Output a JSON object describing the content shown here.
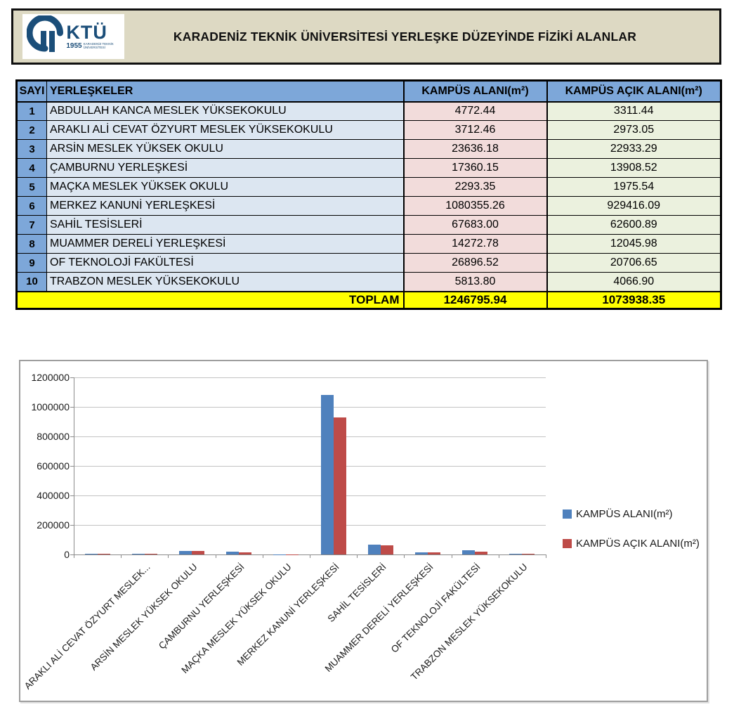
{
  "header": {
    "title": "KARADENİZ TEKNİK ÜNİVERSİTESİ YERLEŞKE DÜZEYİNDE FİZİKİ ALANLAR",
    "logo": {
      "acronym": "KTÜ",
      "year": "1955",
      "subtext": "KARADENİZ TEKNİK ÜNİVERSİTESİ",
      "color": "#1b4e79"
    }
  },
  "table": {
    "columns": [
      "SAYI",
      "YERLEŞKELER",
      "KAMPÜS ALANI(m²)",
      "KAMPÜS AÇIK ALANI(m²)"
    ],
    "rows": [
      {
        "no": "1",
        "name": "ABDULLAH KANCA MESLEK YÜKSEKOKULU",
        "kampus": "4772.44",
        "acik": "3311.44"
      },
      {
        "no": "2",
        "name": "ARAKLI ALİ CEVAT ÖZYURT MESLEK YÜKSEKOKULU",
        "kampus": "3712.46",
        "acik": "2973.05"
      },
      {
        "no": "3",
        "name": "ARSİN MESLEK YÜKSEK OKULU",
        "kampus": "23636.18",
        "acik": "22933.29"
      },
      {
        "no": "4",
        "name": "ÇAMBURNU YERLEŞKESİ",
        "kampus": "17360.15",
        "acik": "13908.52"
      },
      {
        "no": "5",
        "name": "MAÇKA MESLEK YÜKSEK OKULU",
        "kampus": "2293.35",
        "acik": "1975.54"
      },
      {
        "no": "6",
        "name": "MERKEZ KANUNİ YERLEŞKESİ",
        "kampus": "1080355.26",
        "acik": "929416.09"
      },
      {
        "no": "7",
        "name": "SAHİL TESİSLERİ",
        "kampus": "67683.00",
        "acik": "62600.89"
      },
      {
        "no": "8",
        "name": "MUAMMER DERELİ YERLEŞKESİ",
        "kampus": "14272.78",
        "acik": "12045.98"
      },
      {
        "no": "9",
        "name": "OF TEKNOLOJİ FAKÜLTESİ",
        "kampus": "26896.52",
        "acik": "20706.65"
      },
      {
        "no": "10",
        "name": "TRABZON MESLEK YÜKSEKOKULU",
        "kampus": "5813.80",
        "acik": "4066.90"
      }
    ],
    "total": {
      "label": "TOPLAM",
      "kampus": "1246795.94",
      "acik": "1073938.35"
    }
  },
  "chart_data": {
    "type": "bar",
    "title": "",
    "categories": [
      "ABDULLAH KANCA MESLEK YÜKSEKOKULU",
      "ARAKLI ALİ CEVAT ÖZYURT MESLEK YÜKSEKOKULU",
      "ARSİN MESLEK YÜKSEK OKULU",
      "ÇAMBURNU YERLEŞKESİ",
      "MAÇKA MESLEK YÜKSEK OKULU",
      "MERKEZ KANUNİ YERLEŞKESİ",
      "SAHİL TESİSLERİ",
      "MUAMMER DERELİ YERLEŞKESİ",
      "OF TEKNOLOJİ FAKÜLTESİ",
      "TRABZON MESLEK YÜKSEKOKULU"
    ],
    "series": [
      {
        "name": "KAMPÜS ALANI(m²)",
        "color": "#4f81bd",
        "values": [
          4772.44,
          3712.46,
          23636.18,
          17360.15,
          2293.35,
          1080355.26,
          67683.0,
          14272.78,
          26896.52,
          5813.8
        ]
      },
      {
        "name": "KAMPÜS AÇIK ALANI(m²)",
        "color": "#be4b48",
        "values": [
          3311.44,
          2973.05,
          22933.29,
          13908.52,
          1975.54,
          929416.09,
          62600.89,
          12045.98,
          20706.65,
          4066.9
        ]
      }
    ],
    "ylim": [
      0,
      1200000
    ],
    "ytick_step": 200000,
    "ytick_labels": [
      "0",
      "200000",
      "400000",
      "600000",
      "800000",
      "1000000",
      "1200000"
    ],
    "x_tick_labels": [
      "",
      "ARAKLI ALİ CEVAT ÖZYURT MESLEK...",
      "ARSİN MESLEK YÜKSEK OKULU",
      "ÇAMBURNU YERLEŞKESİ",
      "MAÇKA MESLEK YÜKSEK OKULU",
      "MERKEZ KANUNİ YERLEŞKESİ",
      "SAHİL TESİSLERİ",
      "MUAMMER DERELİ YERLEŞKESİ",
      "OF TEKNOLOJİ FAKÜLTESİ",
      "TRABZON MESLEK YÜKSEKOKULU"
    ],
    "grid": true,
    "legend_position": "right"
  }
}
